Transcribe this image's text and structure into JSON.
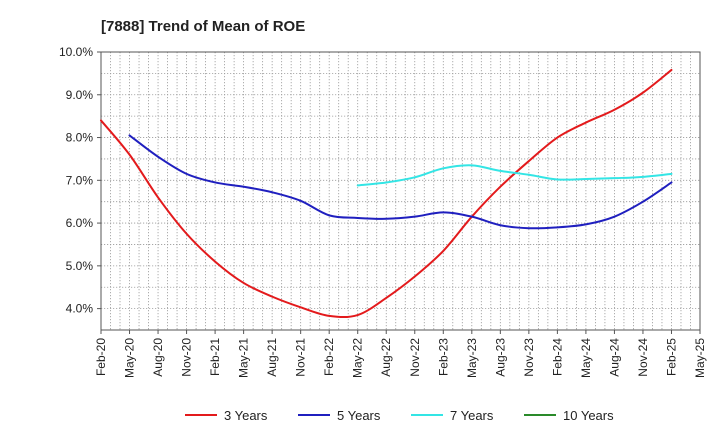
{
  "chart_data": {
    "type": "line",
    "title": "[7888]  Trend of Mean of ROE",
    "xlabel": "",
    "ylabel": "",
    "x_ticks": [
      "Feb-20",
      "May-20",
      "Aug-20",
      "Nov-20",
      "Feb-21",
      "May-21",
      "Aug-21",
      "Nov-21",
      "Feb-22",
      "May-22",
      "Aug-22",
      "Nov-22",
      "Feb-23",
      "May-23",
      "Aug-23",
      "Nov-23",
      "Feb-24",
      "May-24",
      "Aug-24",
      "Nov-24",
      "Feb-25",
      "May-25"
    ],
    "y_ticks": [
      "4.0%",
      "5.0%",
      "6.0%",
      "7.0%",
      "8.0%",
      "9.0%",
      "10.0%"
    ],
    "ylim": [
      3.5,
      10.0
    ],
    "grid": true,
    "legend_position": "bottom",
    "series": [
      {
        "name": "3 Years",
        "color": "#e31a1c",
        "x": [
          "Feb-20",
          "May-20",
          "Aug-20",
          "Nov-20",
          "Feb-21",
          "May-21",
          "Aug-21",
          "Nov-21",
          "Feb-22",
          "May-22",
          "Aug-22",
          "Nov-22",
          "Feb-23",
          "May-23",
          "Aug-23",
          "Nov-23",
          "Feb-24",
          "May-24",
          "Aug-24",
          "Nov-24",
          "Feb-25"
        ],
        "values": [
          8.4,
          7.6,
          6.6,
          5.75,
          5.1,
          4.6,
          4.28,
          4.03,
          3.83,
          3.85,
          4.25,
          4.75,
          5.35,
          6.15,
          6.85,
          7.45,
          8.0,
          8.35,
          8.65,
          9.05,
          9.58
        ]
      },
      {
        "name": "5 Years",
        "color": "#1f1fbf",
        "x": [
          "May-20",
          "Aug-20",
          "Nov-20",
          "Feb-21",
          "May-21",
          "Aug-21",
          "Nov-21",
          "Feb-22",
          "May-22",
          "Aug-22",
          "Nov-22",
          "Feb-23",
          "May-23",
          "Aug-23",
          "Nov-23",
          "Feb-24",
          "May-24",
          "Aug-24",
          "Nov-24",
          "Feb-25"
        ],
        "values": [
          8.05,
          7.55,
          7.15,
          6.95,
          6.85,
          6.72,
          6.52,
          6.18,
          6.12,
          6.1,
          6.15,
          6.25,
          6.15,
          5.95,
          5.88,
          5.9,
          5.97,
          6.15,
          6.5,
          6.95
        ]
      },
      {
        "name": "7 Years",
        "color": "#33e5e5",
        "x": [
          "May-22",
          "Aug-22",
          "Nov-22",
          "Feb-23",
          "May-23",
          "Aug-23",
          "Nov-23",
          "Feb-24",
          "May-24",
          "Aug-24",
          "Nov-24",
          "Feb-25"
        ],
        "values": [
          6.88,
          6.95,
          7.07,
          7.28,
          7.35,
          7.22,
          7.13,
          7.02,
          7.03,
          7.05,
          7.08,
          7.15
        ]
      },
      {
        "name": "10 Years",
        "color": "#2a8a2a",
        "x": [],
        "values": []
      }
    ]
  }
}
